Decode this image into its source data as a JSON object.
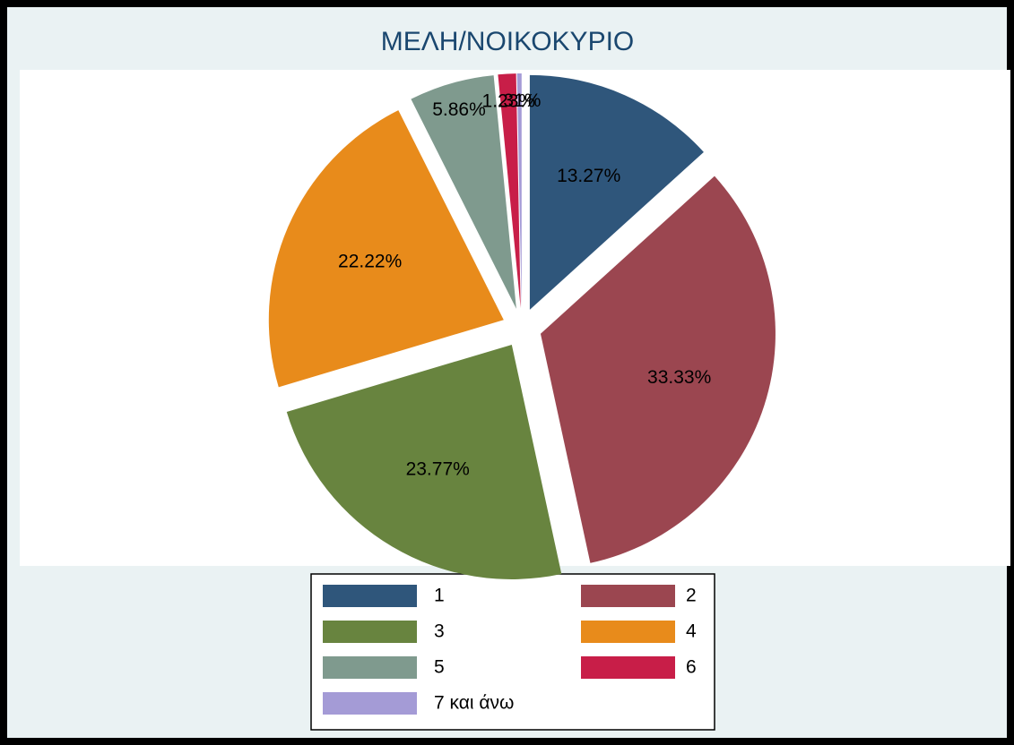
{
  "chart_data": {
    "type": "pie",
    "title": "ΜΕΛΗ/ΝΟΙΚΟΚΥΡΙΟ",
    "categories": [
      "1",
      "2",
      "3",
      "4",
      "5",
      "6",
      "7 και άνω"
    ],
    "values": [
      13.27,
      33.33,
      23.77,
      22.22,
      5.86,
      1.23,
      0.31
    ],
    "value_labels": [
      "13.27%",
      "33.33%",
      "23.77%",
      "22.22%",
      "5.86%",
      "1.23%",
      ".31%"
    ],
    "colors": [
      "#2f567b",
      "#9b4650",
      "#68843f",
      "#e88b1b",
      "#7f9a8e",
      "#c81e48",
      "#a49bd6"
    ]
  }
}
